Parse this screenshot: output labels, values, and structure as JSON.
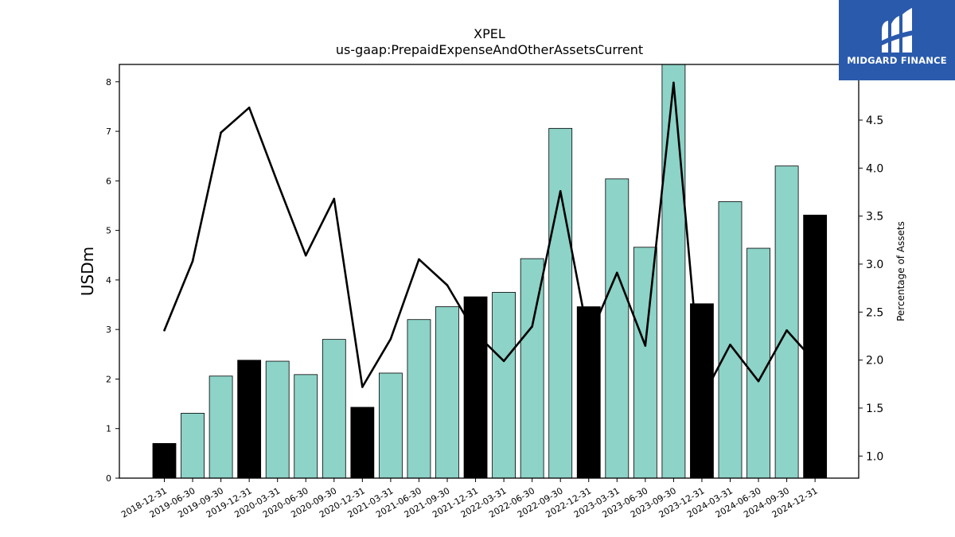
{
  "chart_data": {
    "type": "bar",
    "title": "XPEL",
    "subtitle": "us-gaap:PrepaidExpenseAndOtherAssetsCurrent",
    "ylabel": "USDm",
    "y2label": "Percentage of Assets",
    "categories": [
      "2018-12-31",
      "2019-06-30",
      "2019-09-30",
      "2019-12-31",
      "2020-03-31",
      "2020-06-30",
      "2020-09-30",
      "2020-12-31",
      "2021-03-31",
      "2021-06-30",
      "2021-09-30",
      "2021-12-31",
      "2022-03-31",
      "2022-06-30",
      "2022-09-30",
      "2022-12-31",
      "2023-03-31",
      "2023-06-30",
      "2023-09-30",
      "2023-12-31",
      "2024-03-31",
      "2024-06-30",
      "2024-09-30",
      "2024-12-31"
    ],
    "series": [
      {
        "type": "bar",
        "axis": "left",
        "values": [
          0.7,
          1.31,
          2.06,
          2.38,
          2.36,
          2.09,
          2.8,
          1.43,
          2.12,
          3.2,
          3.46,
          3.66,
          3.75,
          4.43,
          7.06,
          3.46,
          6.04,
          4.66,
          8.35,
          3.52,
          5.58,
          4.64,
          6.3,
          5.31
        ],
        "year_end": [
          true,
          false,
          false,
          true,
          false,
          false,
          false,
          true,
          false,
          false,
          false,
          true,
          false,
          false,
          false,
          true,
          false,
          false,
          false,
          true,
          false,
          false,
          false,
          true
        ],
        "color": "#8dd3c7",
        "year_end_color": "#000000"
      },
      {
        "type": "line",
        "axis": "right",
        "values": [
          2.31,
          3.03,
          4.37,
          4.63,
          3.85,
          3.09,
          3.68,
          1.72,
          2.22,
          3.05,
          2.78,
          2.28,
          1.99,
          2.35,
          3.76,
          2.22,
          2.91,
          2.15,
          4.89,
          1.6,
          2.16,
          1.78,
          2.31,
          1.98
        ],
        "color": "#000000"
      }
    ],
    "ylim": [
      0,
      8.35
    ],
    "y_ticks": [
      0,
      1,
      2,
      3,
      4,
      5,
      6,
      7,
      8
    ],
    "y2lim": [
      0.77,
      5.08
    ],
    "y2_ticks": [
      1.0,
      1.5,
      2.0,
      2.5,
      3.0,
      3.5,
      4.0,
      4.5
    ],
    "grid": false
  },
  "logo": {
    "text": "MIDGARD FINANCE",
    "bg_color": "#2a5aac"
  }
}
